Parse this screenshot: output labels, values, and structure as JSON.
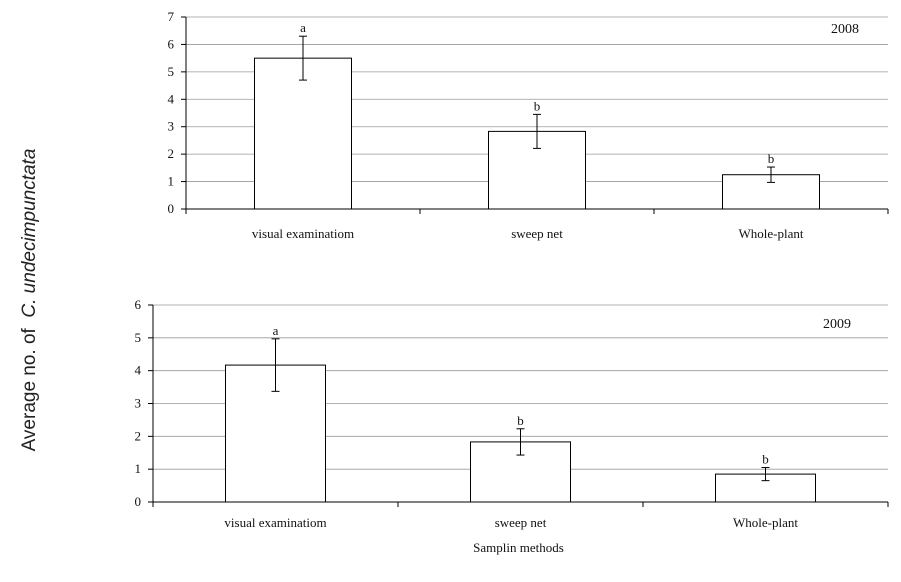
{
  "y_axis_label": {
    "prefix": "Average no. of",
    "species": "C. undecimpunctata"
  },
  "chart_data": [
    {
      "type": "bar",
      "annotation": "2008",
      "categories": [
        "visual examinatiom",
        "sweep net",
        "Whole-plant"
      ],
      "values": [
        5.5,
        2.83,
        1.25
      ],
      "errors": [
        0.8,
        0.62,
        0.28
      ],
      "letters": [
        "a",
        "b",
        "b"
      ],
      "ylim": [
        0,
        7
      ],
      "yticks": [
        0,
        1,
        2,
        3,
        4,
        5,
        6,
        7
      ],
      "xlabel": "",
      "grid": true
    },
    {
      "type": "bar",
      "annotation": "2009",
      "categories": [
        "visual examinatiom",
        "sweep net",
        "Whole-plant"
      ],
      "values": [
        4.17,
        1.83,
        0.85
      ],
      "errors": [
        0.8,
        0.4,
        0.2
      ],
      "letters": [
        "a",
        "b",
        "b"
      ],
      "ylim": [
        0,
        6
      ],
      "yticks": [
        0,
        1,
        2,
        3,
        4,
        5,
        6
      ],
      "xlabel": "Samplin methods",
      "grid": true
    }
  ]
}
